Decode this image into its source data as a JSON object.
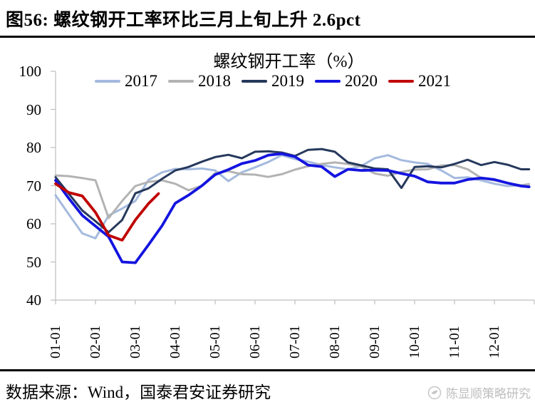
{
  "header": {
    "title": "图56: 螺纹钢开工率环比三月上旬上升 2.6pct"
  },
  "footer": {
    "source": "数据来源：Wind，国泰君安证券研究",
    "watermark": "陈显顺策略研究"
  },
  "chart_data": {
    "type": "line",
    "title": "螺纹钢开工率（%）",
    "xlabel": "",
    "ylabel": "",
    "ylim": [
      40,
      100
    ],
    "yticks": [
      40,
      50,
      60,
      70,
      80,
      90,
      100
    ],
    "xtick_labels": [
      "01-01",
      "02-01",
      "03-01",
      "04-01",
      "05-01",
      "06-01",
      "07-01",
      "08-01",
      "09-01",
      "10-01",
      "11-01",
      "12-01"
    ],
    "grid": false,
    "legend_position": "top",
    "note": "x values are months from Jan 1 (0) to Dec 31 (12); y values are operating rate %",
    "series": [
      {
        "name": "2017",
        "color": "#a4bade",
        "width": 3,
        "points": [
          [
            0,
            67.5
          ],
          [
            0.33,
            62.5
          ],
          [
            0.67,
            57.5
          ],
          [
            1,
            56.2
          ],
          [
            1.33,
            62.2
          ],
          [
            1.67,
            64.0
          ],
          [
            2,
            66.0
          ],
          [
            2.33,
            71.5
          ],
          [
            2.67,
            73.5
          ],
          [
            3,
            74.4
          ],
          [
            3.33,
            74.3
          ],
          [
            3.67,
            74.5
          ],
          [
            4,
            74.0
          ],
          [
            4.33,
            71.2
          ],
          [
            4.67,
            73.5
          ],
          [
            5,
            74.8
          ],
          [
            5.33,
            76.2
          ],
          [
            5.67,
            78.0
          ],
          [
            6,
            77.0
          ],
          [
            6.33,
            76.3
          ],
          [
            6.67,
            75.4
          ],
          [
            7,
            74.8
          ],
          [
            7.33,
            74.3
          ],
          [
            7.67,
            75.2
          ],
          [
            8,
            77.2
          ],
          [
            8.33,
            78.0
          ],
          [
            8.67,
            76.7
          ],
          [
            9,
            76.1
          ],
          [
            9.33,
            75.7
          ],
          [
            9.67,
            74.0
          ],
          [
            10,
            72.0
          ],
          [
            10.33,
            72.2
          ],
          [
            10.67,
            71.4
          ],
          [
            11,
            70.5
          ],
          [
            11.33,
            69.9
          ],
          [
            11.67,
            70.1
          ],
          [
            11.87,
            69.8
          ]
        ]
      },
      {
        "name": "2018",
        "color": "#b3b3b3",
        "width": 3,
        "points": [
          [
            0,
            72.7
          ],
          [
            0.33,
            72.5
          ],
          [
            0.67,
            72.0
          ],
          [
            1,
            71.4
          ],
          [
            1.33,
            61.5
          ],
          [
            1.67,
            66.0
          ],
          [
            2,
            69.9
          ],
          [
            2.33,
            71.0
          ],
          [
            2.67,
            71.4
          ],
          [
            3,
            70.5
          ],
          [
            3.33,
            68.8
          ],
          [
            3.67,
            70.0
          ],
          [
            4,
            73.3
          ],
          [
            4.33,
            73.8
          ],
          [
            4.67,
            73.0
          ],
          [
            5,
            72.9
          ],
          [
            5.33,
            72.3
          ],
          [
            5.67,
            73.0
          ],
          [
            6,
            74.2
          ],
          [
            6.33,
            75.1
          ],
          [
            6.67,
            75.7
          ],
          [
            7,
            76.1
          ],
          [
            7.33,
            75.7
          ],
          [
            7.67,
            75.0
          ],
          [
            8,
            73.2
          ],
          [
            8.33,
            72.6
          ],
          [
            8.67,
            73.6
          ],
          [
            9,
            74.2
          ],
          [
            9.33,
            74.3
          ],
          [
            9.67,
            75.3
          ],
          [
            10,
            75.4
          ],
          [
            10.33,
            74.3
          ],
          [
            10.67,
            72.0
          ],
          [
            11,
            71.4
          ],
          [
            11.33,
            70.7
          ],
          [
            11.67,
            70.1
          ],
          [
            11.87,
            70.4
          ]
        ]
      },
      {
        "name": "2019",
        "color": "#26395c",
        "width": 3,
        "points": [
          [
            0,
            72.2
          ],
          [
            0.33,
            67.9
          ],
          [
            0.67,
            63.5
          ],
          [
            1,
            60.7
          ],
          [
            1.33,
            57.8
          ],
          [
            1.67,
            61.0
          ],
          [
            2,
            68.0
          ],
          [
            2.33,
            69.3
          ],
          [
            2.67,
            71.8
          ],
          [
            3,
            74.0
          ],
          [
            3.33,
            74.9
          ],
          [
            3.67,
            76.3
          ],
          [
            4,
            77.5
          ],
          [
            4.33,
            78.1
          ],
          [
            4.67,
            77.2
          ],
          [
            5,
            78.9
          ],
          [
            5.33,
            79.0
          ],
          [
            5.67,
            78.7
          ],
          [
            6,
            77.8
          ],
          [
            6.33,
            79.4
          ],
          [
            6.67,
            79.6
          ],
          [
            7,
            78.9
          ],
          [
            7.33,
            76.1
          ],
          [
            7.67,
            75.3
          ],
          [
            8,
            74.5
          ],
          [
            8.33,
            74.3
          ],
          [
            8.67,
            69.4
          ],
          [
            9,
            74.9
          ],
          [
            9.33,
            75.1
          ],
          [
            9.67,
            74.8
          ],
          [
            10,
            75.7
          ],
          [
            10.33,
            76.8
          ],
          [
            10.67,
            75.4
          ],
          [
            11,
            76.2
          ],
          [
            11.33,
            75.5
          ],
          [
            11.67,
            74.3
          ],
          [
            11.87,
            74.3
          ]
        ]
      },
      {
        "name": "2020",
        "color": "#1414e0",
        "width": 3.8,
        "points": [
          [
            0,
            71.4
          ],
          [
            0.33,
            66.7
          ],
          [
            0.67,
            62.2
          ],
          [
            1,
            59.4
          ],
          [
            1.33,
            56.6
          ],
          [
            1.67,
            50.0
          ],
          [
            2,
            49.8
          ],
          [
            2.33,
            54.5
          ],
          [
            2.67,
            59.5
          ],
          [
            3,
            65.4
          ],
          [
            3.33,
            67.5
          ],
          [
            3.67,
            70.0
          ],
          [
            4,
            72.9
          ],
          [
            4.33,
            74.2
          ],
          [
            4.67,
            75.8
          ],
          [
            5,
            76.6
          ],
          [
            5.33,
            78.0
          ],
          [
            5.67,
            78.4
          ],
          [
            6,
            77.6
          ],
          [
            6.33,
            75.4
          ],
          [
            6.67,
            75.0
          ],
          [
            7,
            72.4
          ],
          [
            7.33,
            74.3
          ],
          [
            7.67,
            74.0
          ],
          [
            8,
            74.1
          ],
          [
            8.33,
            74.0
          ],
          [
            8.67,
            73.2
          ],
          [
            9,
            72.5
          ],
          [
            9.33,
            71.0
          ],
          [
            9.67,
            70.7
          ],
          [
            10,
            70.7
          ],
          [
            10.33,
            71.6
          ],
          [
            10.67,
            72.0
          ],
          [
            11,
            71.6
          ],
          [
            11.33,
            70.7
          ],
          [
            11.67,
            69.9
          ],
          [
            11.87,
            69.7
          ]
        ]
      },
      {
        "name": "2021",
        "color": "#c00000",
        "width": 3.8,
        "points": [
          [
            0,
            70.5
          ],
          [
            0.33,
            68.2
          ],
          [
            0.67,
            67.3
          ],
          [
            1,
            63.0
          ],
          [
            1.33,
            57.0
          ],
          [
            1.67,
            55.7
          ],
          [
            2,
            61.0
          ],
          [
            2.33,
            65.3
          ],
          [
            2.58,
            67.9
          ]
        ]
      }
    ]
  }
}
